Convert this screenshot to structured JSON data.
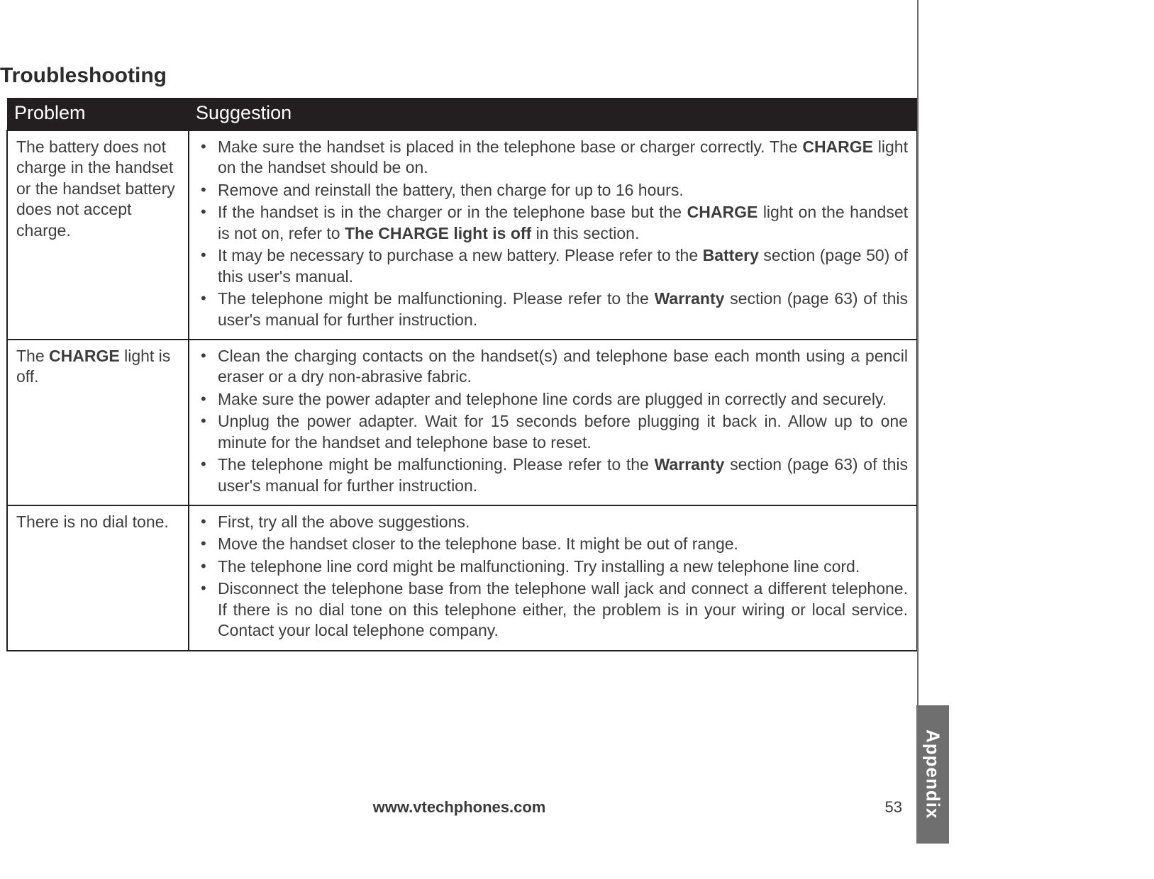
{
  "page": {
    "title": "Troubleshooting",
    "footer_url": "www.vtechphones.com",
    "page_number": "53",
    "side_tab": "Appendix"
  },
  "table": {
    "headers": {
      "problem": "Problem",
      "suggestion": "Suggestion"
    },
    "rows": [
      {
        "problem": "The battery does not charge in the handset or the handset battery does not accept charge.",
        "suggestions": [
          {
            "pre": "Make sure the handset is placed in the telephone base or charger correctly. The ",
            "b1": "CHARGE",
            "post": " light on the handset should be on."
          },
          {
            "pre": "Remove and reinstall the battery, then charge for up to 16 hours."
          },
          {
            "pre": "If the handset is in the charger or in the telephone base but the ",
            "b1": "CHARGE",
            "mid": " light on the handset is not on, refer to ",
            "b2": "The CHARGE light is off",
            "post": " in this section."
          },
          {
            "pre": "It may be necessary to purchase a new battery. Please refer to the ",
            "b1": "Battery",
            "post": " section (page  50) of this user's manual."
          },
          {
            "pre": "The telephone might be malfunctioning. Please refer to the ",
            "b1": "Warranty",
            "post": " section (page 63) of this user's manual for further instruction."
          }
        ]
      },
      {
        "problem_pre": "The ",
        "problem_b": "CHARGE",
        "problem_post": " light is off.",
        "suggestions": [
          {
            "pre": "Clean the charging contacts on the handset(s) and telephone base each month using a pencil eraser or a dry non-abrasive fabric."
          },
          {
            "pre": "Make sure the power adapter and telephone line cords are plugged in correctly and securely."
          },
          {
            "pre": "Unplug the power adapter. Wait for 15 seconds before plugging it back in. Allow up to one minute for the handset and telephone base to reset."
          },
          {
            "pre": "The telephone might be malfunctioning. Please refer to the ",
            "b1": "Warranty",
            "post": " section (page 63) of this user's manual for further instruction."
          }
        ]
      },
      {
        "problem": "There is no dial tone.",
        "suggestions": [
          {
            "pre": "First, try all the above suggestions."
          },
          {
            "pre": "Move the handset closer to the telephone base. It might be out of range."
          },
          {
            "pre": "The telephone line cord might be malfunctioning. Try installing a new telephone line cord."
          },
          {
            "pre": "Disconnect the telephone base from the telephone wall jack and connect a different telephone. If there is no dial tone on this telephone either, the problem is in your wiring or local service. Contact your local telephone company."
          }
        ]
      }
    ]
  }
}
